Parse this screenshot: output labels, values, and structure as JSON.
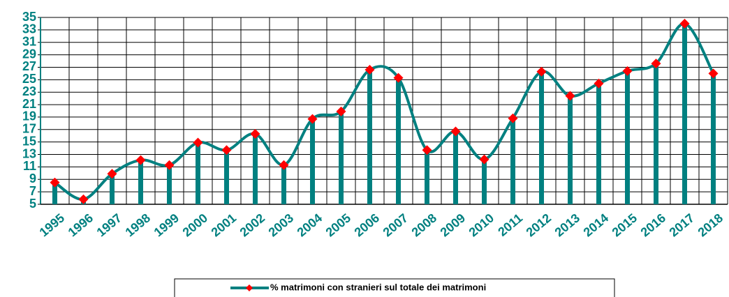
{
  "chart_data": {
    "type": "line",
    "categories": [
      "1995",
      "1996",
      "1997",
      "1998",
      "1999",
      "2000",
      "2001",
      "2002",
      "2003",
      "2004",
      "2005",
      "2006",
      "2007",
      "2008",
      "2009",
      "2010",
      "2011",
      "2012",
      "2013",
      "2014",
      "2015",
      "2016",
      "2017",
      "2018"
    ],
    "series": [
      {
        "name": "% matrimoni con stranieri sul totale dei matrimoni",
        "color": "#008080",
        "marker_color": "#ff0000",
        "values": [
          8.5,
          5.8,
          9.9,
          12.1,
          11.3,
          14.9,
          13.7,
          16.3,
          11.3,
          18.7,
          19.9,
          26.6,
          25.3,
          13.7,
          16.7,
          12.2,
          18.8,
          26.3,
          22.4,
          24.4,
          26.4,
          27.6,
          34.0,
          26.0
        ]
      }
    ],
    "ylim": [
      5,
      35
    ],
    "yticks": [
      5,
      7,
      9,
      11,
      13,
      15,
      17,
      19,
      21,
      23,
      25,
      27,
      29,
      31,
      33,
      35
    ],
    "grid": true,
    "smooth": true,
    "drop_lines": true,
    "legend": "bottom"
  }
}
